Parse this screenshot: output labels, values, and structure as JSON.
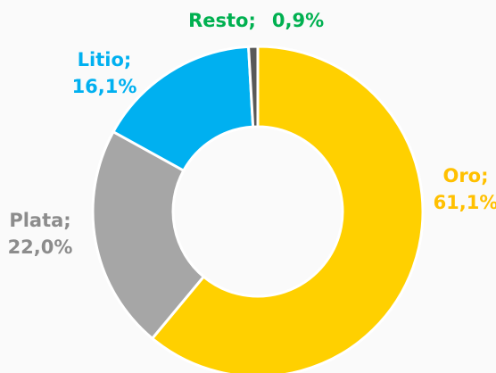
{
  "chart_data": {
    "type": "donut",
    "categories": [
      "Oro;",
      "Plata;",
      "Litio;",
      "Resto;"
    ],
    "values": [
      61.1,
      22.0,
      16.1,
      0.9
    ],
    "value_labels": [
      "61,1%",
      "22,0%",
      "16,1%",
      "0,9%"
    ],
    "colors": [
      "#ffd000",
      "#a6a6a6",
      "#00b0f0",
      "#595959"
    ],
    "label_colors": [
      "#ffc000",
      "#8c8c8c",
      "#00b0f0",
      "#00b050"
    ]
  }
}
